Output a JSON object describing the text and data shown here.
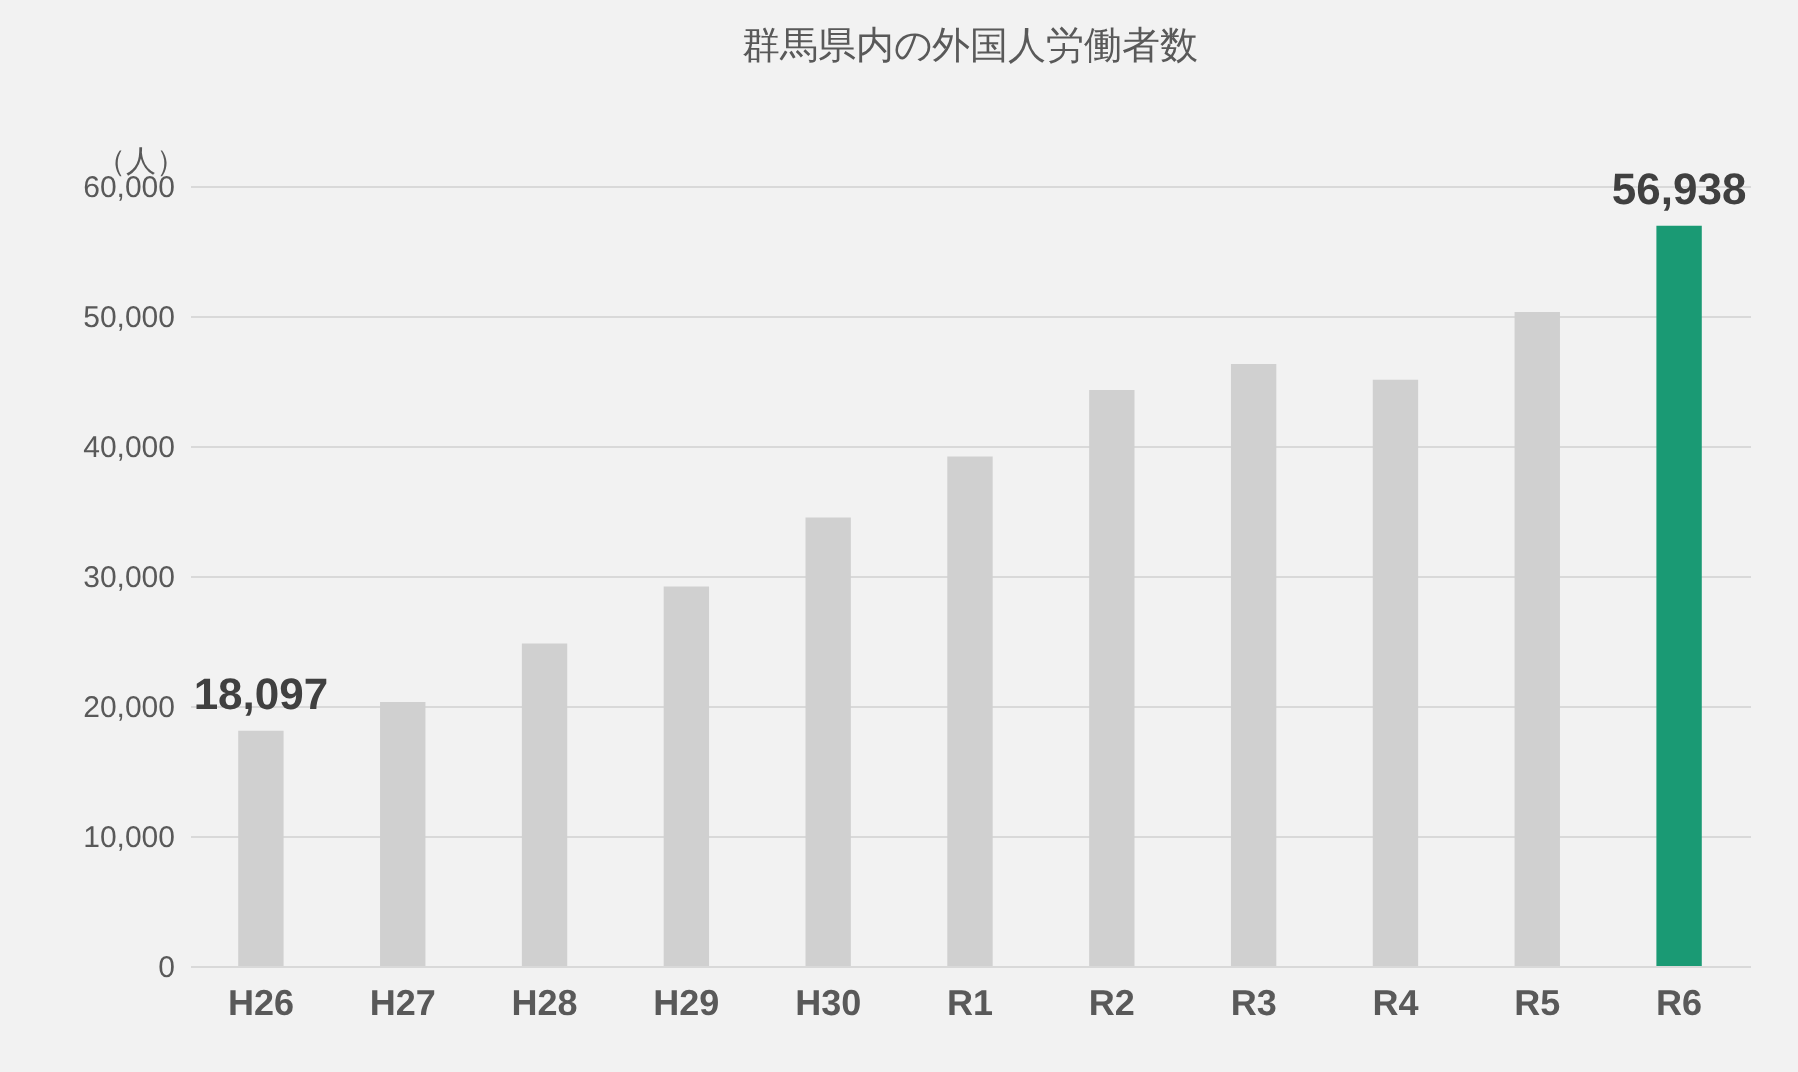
{
  "chart_data": {
    "type": "bar",
    "title": "群馬県内の外国人労働者数",
    "ylabel": "（人）",
    "categories": [
      "H26",
      "H27",
      "H28",
      "H29",
      "H30",
      "R1",
      "R2",
      "R3",
      "R4",
      "R5",
      "R6"
    ],
    "values": [
      18097,
      20300,
      24800,
      29200,
      34500,
      39200,
      44300,
      46300,
      45100,
      50300,
      56938
    ],
    "colors": [
      "#d0d0d0",
      "#d0d0d0",
      "#d0d0d0",
      "#d0d0d0",
      "#d0d0d0",
      "#d0d0d0",
      "#d0d0d0",
      "#d0d0d0",
      "#d0d0d0",
      "#d0d0d0",
      "#1a9a74"
    ],
    "value_labels": [
      "18,097",
      null,
      null,
      null,
      null,
      null,
      null,
      null,
      null,
      null,
      "56,938"
    ],
    "ylim": [
      0,
      60000
    ],
    "yticks": [
      {
        "value": 0,
        "label": "0"
      },
      {
        "value": 10000,
        "label": "10,000"
      },
      {
        "value": 20000,
        "label": "20,000"
      },
      {
        "value": 30000,
        "label": "30,000"
      },
      {
        "value": 40000,
        "label": "40,000"
      },
      {
        "value": 50000,
        "label": "50,000"
      },
      {
        "value": 60000,
        "label": "60,000"
      }
    ],
    "grid": "y"
  }
}
